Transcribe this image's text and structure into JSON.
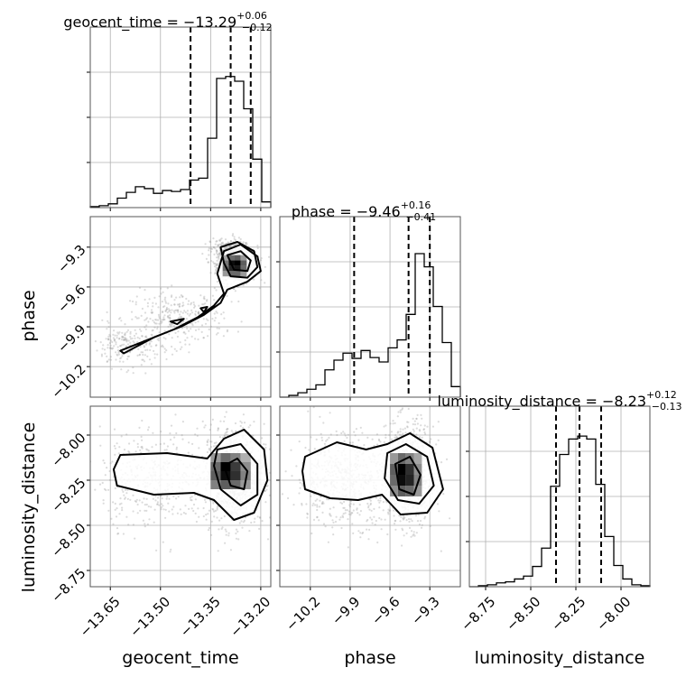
{
  "chart_data": {
    "type": "corner",
    "parameters": [
      "geocent_time",
      "phase",
      "luminosity_distance"
    ],
    "axis_labels": {
      "geocent_time": "geocent_time",
      "phase": "phase",
      "luminosity_distance": "luminosity_distance"
    },
    "ranges": {
      "geocent_time": [
        -13.71,
        -13.17
      ],
      "phase": [
        -10.43,
        -9.07
      ],
      "luminosity_distance": [
        -8.84,
        -7.84
      ]
    },
    "ticks": {
      "geocent_time": [
        -13.65,
        -13.5,
        -13.35,
        -13.2
      ],
      "phase": [
        -10.2,
        -9.9,
        -9.6,
        -9.3
      ],
      "luminosity_distance": [
        -8.75,
        -8.5,
        -8.25,
        -8.0
      ]
    },
    "tick_labels": {
      "geocent_time": [
        "−13.65",
        "−13.50",
        "−13.35",
        "−13.20"
      ],
      "phase": [
        "−10.2",
        "−9.9",
        "−9.6",
        "−9.3"
      ],
      "luminosity_distance": [
        "−8.75",
        "−8.50",
        "−8.25",
        "−8.00"
      ]
    },
    "summaries": [
      {
        "param": "geocent_time",
        "name": "geocent_time",
        "median": "−13.29",
        "plus": "+0.06",
        "minus": "−0.12",
        "quantiles": [
          -13.41,
          -13.29,
          -13.23
        ]
      },
      {
        "param": "phase",
        "name": "phase",
        "median": "−9.46",
        "plus": "+0.16",
        "minus": "−0.41",
        "quantiles": [
          -9.87,
          -9.46,
          -9.3
        ]
      },
      {
        "param": "luminosity_distance",
        "name": "luminosity_distance",
        "median": "−8.23",
        "plus": "+0.12",
        "minus": "−0.13",
        "quantiles": [
          -8.36,
          -8.23,
          -8.11
        ]
      }
    ],
    "histograms": {
      "geocent_time": {
        "edges": [
          -13.71,
          -13.683,
          -13.656,
          -13.629,
          -13.602,
          -13.575,
          -13.548,
          -13.521,
          -13.494,
          -13.467,
          -13.44,
          -13.413,
          -13.386,
          -13.359,
          -13.332,
          -13.305,
          -13.278,
          -13.251,
          -13.224,
          -13.197,
          -13.17
        ],
        "counts": [
          1,
          2,
          4,
          10,
          16,
          22,
          20,
          15,
          18,
          17,
          19,
          29,
          31,
          73,
          136,
          138,
          133,
          104,
          51,
          6
        ]
      },
      "phase": {
        "edges": [
          -10.43,
          -10.362,
          -10.294,
          -10.226,
          -10.158,
          -10.09,
          -10.022,
          -9.954,
          -9.886,
          -9.818,
          -9.75,
          -9.682,
          -9.614,
          -9.546,
          -9.478,
          -9.41,
          -9.342,
          -9.274,
          -9.206,
          -9.138,
          -9.07
        ],
        "counts": [
          0,
          2,
          5,
          9,
          14,
          31,
          42,
          50,
          44,
          53,
          45,
          40,
          56,
          65,
          94,
          163,
          148,
          103,
          62,
          12
        ]
      },
      "luminosity_distance": {
        "edges": [
          -8.84,
          -8.79,
          -8.74,
          -8.69,
          -8.64,
          -8.59,
          -8.54,
          -8.49,
          -8.44,
          -8.39,
          -8.34,
          -8.29,
          -8.24,
          -8.19,
          -8.14,
          -8.09,
          -8.04,
          -7.99,
          -7.94,
          -7.89,
          -7.84
        ],
        "counts": [
          0,
          1,
          2,
          4,
          5,
          8,
          11,
          21,
          40,
          104,
          137,
          153,
          156,
          153,
          106,
          52,
          22,
          8,
          2,
          1
        ]
      }
    },
    "histogram_ymax": {
      "geocent_time": 190,
      "phase": 205,
      "luminosity_distance": 187
    },
    "pairs": [
      {
        "x": "geocent_time",
        "y": "phase",
        "density": {
          "x_edges": [
            -13.314,
            -13.296,
            -13.278,
            -13.26,
            -13.242
          ],
          "y_edges": [
            -9.52,
            -9.48,
            -9.44,
            -9.4,
            -9.36
          ],
          "levels": [
            [
              0.35,
              0.55,
              0.55,
              0.35
            ],
            [
              0.55,
              0.85,
              0.9,
              0.55
            ],
            [
              0.5,
              0.95,
              1.0,
              0.6
            ],
            [
              0.3,
              0.55,
              0.6,
              0.35
            ]
          ]
        },
        "modes": [
          {
            "x": -13.27,
            "y": -9.43,
            "sx": 0.03,
            "sy": 0.07,
            "weight": 0.5
          },
          {
            "x": -13.3,
            "y": -9.33,
            "sx": 0.025,
            "sy": 0.05,
            "weight": 0.15
          },
          {
            "x": -13.45,
            "y": -9.83,
            "sx": 0.07,
            "sy": 0.1,
            "weight": 0.2
          },
          {
            "x": -13.6,
            "y": -10.05,
            "sx": 0.05,
            "sy": 0.08,
            "weight": 0.15
          }
        ],
        "contours": [
          [
            [
              -13.62,
              -10.08
            ],
            [
              -13.54,
              -10.0
            ],
            [
              -13.46,
              -9.92
            ],
            [
              -13.39,
              -9.83
            ],
            [
              -13.34,
              -9.74
            ],
            [
              -13.31,
              -9.65
            ],
            [
              -13.33,
              -9.5
            ],
            [
              -13.31,
              -9.33
            ],
            [
              -13.26,
              -9.28
            ],
            [
              -13.21,
              -9.37
            ],
            [
              -13.2,
              -9.48
            ],
            [
              -13.24,
              -9.56
            ],
            [
              -13.3,
              -9.62
            ],
            [
              -13.32,
              -9.72
            ],
            [
              -13.37,
              -9.81
            ],
            [
              -13.44,
              -9.9
            ],
            [
              -13.52,
              -9.98
            ],
            [
              -13.61,
              -10.1
            ]
          ],
          [
            [
              -13.32,
              -9.3
            ],
            [
              -13.27,
              -9.26
            ],
            [
              -13.22,
              -9.33
            ],
            [
              -13.21,
              -9.45
            ],
            [
              -13.24,
              -9.53
            ],
            [
              -13.29,
              -9.52
            ],
            [
              -13.31,
              -9.42
            ]
          ],
          [
            [
              -13.3,
              -9.36
            ],
            [
              -13.26,
              -9.33
            ],
            [
              -13.23,
              -9.4
            ],
            [
              -13.24,
              -9.48
            ],
            [
              -13.28,
              -9.47
            ]
          ],
          [
            [
              -13.38,
              -9.76
            ],
            [
              -13.36,
              -9.75
            ],
            [
              -13.37,
              -9.79
            ]
          ],
          [
            [
              -13.47,
              -9.86
            ],
            [
              -13.43,
              -9.84
            ],
            [
              -13.45,
              -9.88
            ]
          ]
        ]
      },
      {
        "x": "geocent_time",
        "y": "luminosity_distance",
        "density": {
          "x_edges": [
            -13.35,
            -13.32,
            -13.29,
            -13.26,
            -13.23
          ],
          "y_edges": [
            -8.3,
            -8.25,
            -8.2,
            -8.15,
            -8.1
          ],
          "levels": [
            [
              0.45,
              0.6,
              0.55,
              0.35
            ],
            [
              0.6,
              0.95,
              0.8,
              0.45
            ],
            [
              0.55,
              1.0,
              0.75,
              0.4
            ],
            [
              0.35,
              0.55,
              0.45,
              0.25
            ]
          ]
        },
        "modes": [
          {
            "x": -13.28,
            "y": -8.22,
            "sx": 0.045,
            "sy": 0.14,
            "weight": 0.7
          },
          {
            "x": -13.52,
            "y": -8.24,
            "sx": 0.08,
            "sy": 0.13,
            "weight": 0.3
          }
        ],
        "contours": [
          [
            [
              -13.62,
              -8.11
            ],
            [
              -13.48,
              -8.1
            ],
            [
              -13.36,
              -8.13
            ],
            [
              -13.31,
              -8.02
            ],
            [
              -13.25,
              -7.97
            ],
            [
              -13.19,
              -8.08
            ],
            [
              -13.18,
              -8.25
            ],
            [
              -13.22,
              -8.43
            ],
            [
              -13.28,
              -8.47
            ],
            [
              -13.34,
              -8.36
            ],
            [
              -13.4,
              -8.32
            ],
            [
              -13.52,
              -8.33
            ],
            [
              -13.63,
              -8.28
            ],
            [
              -13.64,
              -8.19
            ]
          ],
          [
            [
              -13.33,
              -8.08
            ],
            [
              -13.26,
              -8.05
            ],
            [
              -13.21,
              -8.16
            ],
            [
              -13.21,
              -8.33
            ],
            [
              -13.26,
              -8.39
            ],
            [
              -13.32,
              -8.3
            ],
            [
              -13.34,
              -8.17
            ]
          ],
          [
            [
              -13.31,
              -8.17
            ],
            [
              -13.27,
              -8.13
            ],
            [
              -13.24,
              -8.2
            ],
            [
              -13.25,
              -8.3
            ],
            [
              -13.29,
              -8.28
            ]
          ]
        ]
      },
      {
        "x": "phase",
        "y": "luminosity_distance",
        "density": {
          "x_edges": [
            -9.6,
            -9.54,
            -9.48,
            -9.42,
            -9.36
          ],
          "y_edges": [
            -8.34,
            -8.28,
            -8.22,
            -8.16,
            -8.1
          ],
          "levels": [
            [
              0.4,
              0.6,
              0.55,
              0.35
            ],
            [
              0.55,
              0.95,
              0.85,
              0.45
            ],
            [
              0.6,
              1.0,
              0.8,
              0.4
            ],
            [
              0.35,
              0.55,
              0.45,
              0.3
            ]
          ]
        },
        "modes": [
          {
            "x": -9.47,
            "y": -8.22,
            "sx": 0.1,
            "sy": 0.14,
            "weight": 0.6
          },
          {
            "x": -9.95,
            "y": -8.24,
            "sx": 0.18,
            "sy": 0.13,
            "weight": 0.4
          }
        ],
        "contours": [
          [
            [
              -10.24,
              -8.12
            ],
            [
              -10.0,
              -8.04
            ],
            [
              -9.78,
              -8.08
            ],
            [
              -9.62,
              -8.05
            ],
            [
              -9.45,
              -7.99
            ],
            [
              -9.28,
              -8.07
            ],
            [
              -9.2,
              -8.3
            ],
            [
              -9.32,
              -8.43
            ],
            [
              -9.52,
              -8.44
            ],
            [
              -9.66,
              -8.33
            ],
            [
              -9.84,
              -8.36
            ],
            [
              -10.05,
              -8.35
            ],
            [
              -10.24,
              -8.3
            ],
            [
              -10.26,
              -8.2
            ]
          ],
          [
            [
              -9.62,
              -8.1
            ],
            [
              -9.48,
              -8.05
            ],
            [
              -9.32,
              -8.12
            ],
            [
              -9.27,
              -8.28
            ],
            [
              -9.38,
              -8.38
            ],
            [
              -9.54,
              -8.36
            ],
            [
              -9.64,
              -8.24
            ]
          ],
          [
            [
              -9.56,
              -8.16
            ],
            [
              -9.45,
              -8.12
            ],
            [
              -9.37,
              -8.22
            ],
            [
              -9.42,
              -8.33
            ],
            [
              -9.53,
              -8.3
            ]
          ]
        ]
      }
    ]
  }
}
